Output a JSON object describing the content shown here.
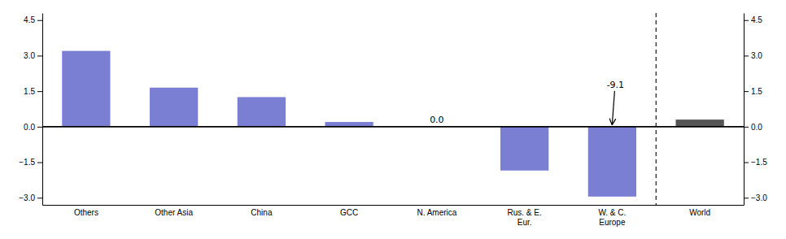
{
  "chart_data": {
    "type": "bar",
    "categories": [
      "Others",
      "Other Asia",
      "China",
      "GCC",
      "N. America",
      "Rus. & E.\nEur.",
      "W. & C.\nEurope",
      "World"
    ],
    "values": [
      3.2,
      1.65,
      1.25,
      0.2,
      0.0,
      -1.85,
      -2.95,
      0.3
    ],
    "colors": [
      "#7B7FD4",
      "#7B7FD4",
      "#7B7FD4",
      "#7B7FD4",
      "#7B7FD4",
      "#7B7FD4",
      "#7B7FD4",
      "#555555"
    ],
    "ylim": [
      -3.3,
      4.8
    ],
    "yticks": [
      {
        "value": -3.0,
        "label": "−3.0"
      },
      {
        "value": -1.5,
        "label": "−1.5"
      },
      {
        "value": 0.0,
        "label": "0.0"
      },
      1.5,
      {
        "value": 3.0,
        "label": "3.0"
      },
      4.5
    ],
    "y2lim": [
      -3.3,
      4.8
    ],
    "y2ticks": [
      {
        "value": -3.0,
        "label": "−3.0"
      },
      {
        "value": -1.5,
        "label": "−1.5"
      },
      {
        "value": 0.0,
        "label": "0.0"
      },
      1.5,
      {
        "value": 3.0,
        "label": "3.0"
      },
      4.5
    ],
    "annotations": [
      {
        "text": "-9.1",
        "category": "W. & C.\nEurope",
        "arrow": true
      },
      {
        "text": "0.0",
        "category": "N. America"
      }
    ],
    "grid": false
  }
}
